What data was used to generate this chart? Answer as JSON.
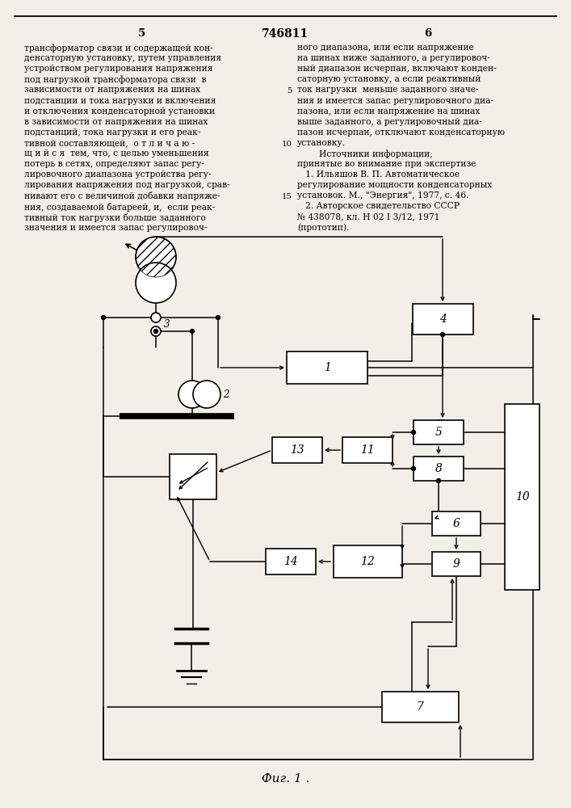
{
  "background_color": "#f2efe8",
  "page_num_left": "5",
  "page_num_center": "746811",
  "page_num_right": "6",
  "col_left": [
    "трансформатор связи и содержащей кон-",
    "денсаторную установку, путем управления",
    "устройством регулирования напряжения",
    "под нагрузкой трансформатора связи  в",
    "зависимости от напряжения на шинах",
    "подстанции и тока нагрузки и включения",
    "и отключения конденсаторной установки",
    "в зависимости от напряжения на шинах",
    "подстанций, тока нагрузки и его реак-",
    "тивной составляющей,  о т л и ч а ю -",
    "щ и й с я  тем, что, с целью уменьшения",
    "потерь в сетях, определяют запас регу-",
    "лировочного диапазона устройства регу-",
    "лирования напряжения под нагрузкой, срав-",
    "нивают его с величиной добавки напряже-",
    "ния, создаваемой батареей, и,  если реак-",
    "тивный ток нагрузки больше заданного",
    "значения и имеется запас регулировоч-"
  ],
  "col_right": [
    "ного диапазона, или если напряжение",
    "на шинах ниже заданного, а регулировоч-",
    "ный диапазон исчерпан, включают конден-",
    "саторную установку, а если реактивный",
    "ток нагрузки  меньше заданного значе-",
    "ния и имеется запас регулировочного диа-",
    "пазона, или если напряжение на шинах",
    "выше заданного, а регулировочный диа-",
    "пазон исчерпан, отключают конденсаторную",
    "установку.",
    "        Источники информации,",
    "принятые во внимание при экспертизе",
    "   1. Ильяшов В. П. Автоматическое",
    "регулирование мощности конденсаторных",
    "установок. М., \"Энергия\", 1977, с. 46.",
    "   2. Авторское свидетельство СССР",
    "№ 438078, кл. Н 02 I 3/12, 1971",
    "(прототип)."
  ],
  "line_numbers": {
    "4": "5",
    "9": "10",
    "14": "15"
  },
  "fig_label": "Фиг. 1 ."
}
